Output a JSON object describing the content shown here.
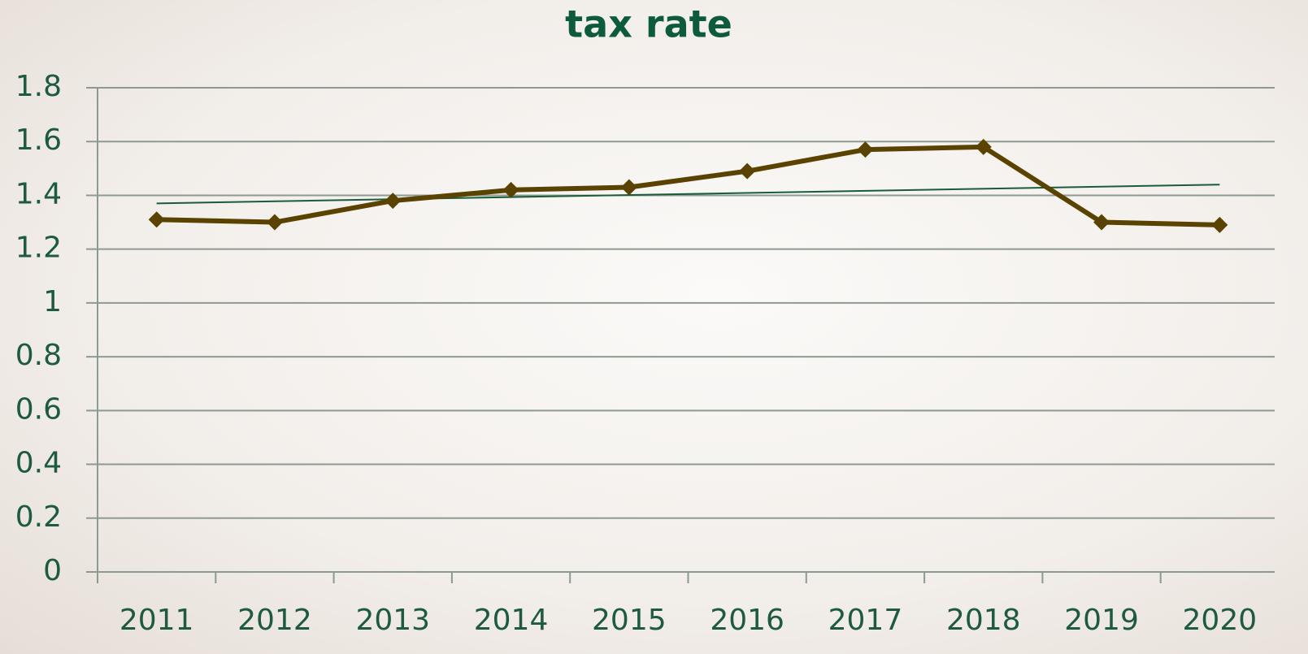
{
  "chart_data": {
    "type": "line",
    "title": "tax rate",
    "categories": [
      "2011",
      "2012",
      "2013",
      "2014",
      "2015",
      "2016",
      "2017",
      "2018",
      "2019",
      "2020"
    ],
    "series": [
      {
        "color": "#5a4200",
        "values": [
          1.31,
          1.3,
          1.38,
          1.42,
          1.43,
          1.49,
          1.57,
          1.58,
          1.3,
          1.29
        ]
      }
    ],
    "trendline": {
      "color": "#1a5c3a",
      "values": [
        1.37,
        1.44
      ]
    },
    "ylim": [
      0,
      1.8
    ],
    "yticks": [
      0,
      0.2,
      0.4,
      0.6,
      0.8,
      1,
      1.2,
      1.4,
      1.6,
      1.8
    ],
    "grid": true
  }
}
